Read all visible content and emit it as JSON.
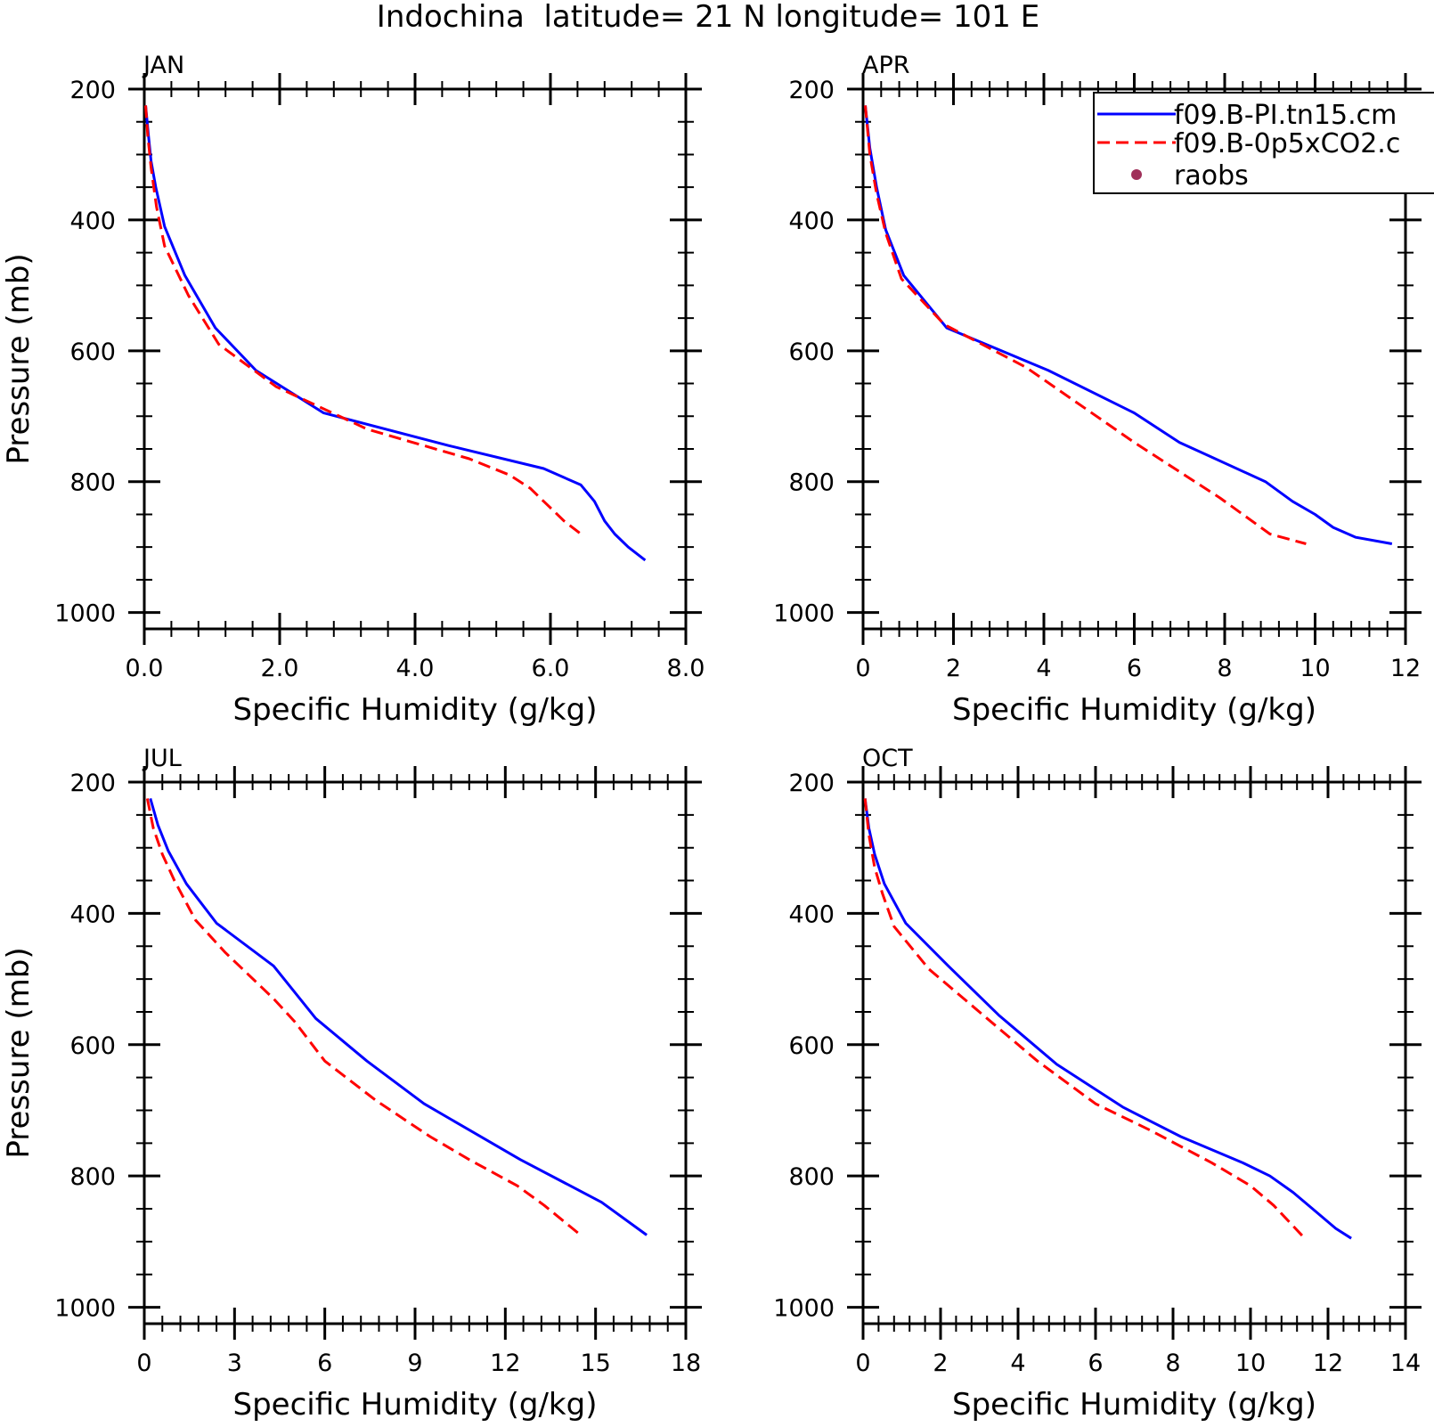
{
  "figure": {
    "title": "Indochina  latitude= 21 N longitude= 101 E"
  },
  "legend": {
    "entries": [
      {
        "label": "f09.B-PI.tn15.cm",
        "style": "solid",
        "color": "#0000ff"
      },
      {
        "label": "f09.B-0p5xCO2.c",
        "style": "dashed",
        "color": "#ff0000"
      },
      {
        "label": "raobs",
        "style": "marker",
        "color": "#a0305a"
      }
    ]
  },
  "chart_data": [
    {
      "type": "line",
      "title": "JAN",
      "xlabel": "Specific Humidity (g/kg)",
      "ylabel": "Pressure (mb)",
      "xlim": [
        0,
        8
      ],
      "ylim": [
        1025,
        200
      ],
      "y_inverted": true,
      "xticks": [
        0,
        2,
        4,
        6,
        8
      ],
      "xtick_labels": [
        "0.0",
        "2.0",
        "4.0",
        "6.0",
        "8.0"
      ],
      "yticks": [
        200,
        400,
        600,
        800,
        1000
      ],
      "ytick_labels": [
        "200",
        "400",
        "600",
        "800",
        "1000"
      ],
      "series": [
        {
          "name": "f09.B-PI.tn15.cm",
          "style": "solid",
          "color": "#0000ff",
          "points": [
            [
              0.02,
              225
            ],
            [
              0.06,
              270
            ],
            [
              0.1,
              310
            ],
            [
              0.17,
              350
            ],
            [
              0.3,
              410
            ],
            [
              0.6,
              485
            ],
            [
              1.05,
              565
            ],
            [
              1.65,
              630
            ],
            [
              2.65,
              695
            ],
            [
              4.5,
              745
            ],
            [
              5.9,
              780
            ],
            [
              6.45,
              805
            ],
            [
              6.65,
              830
            ],
            [
              6.8,
              860
            ],
            [
              6.95,
              880
            ],
            [
              7.15,
              900
            ],
            [
              7.4,
              920
            ]
          ]
        },
        {
          "name": "f09.B-0p5xCO2.c",
          "style": "dashed",
          "color": "#ff0000",
          "points": [
            [
              0.02,
              225
            ],
            [
              0.05,
              270
            ],
            [
              0.1,
              320
            ],
            [
              0.18,
              380
            ],
            [
              0.3,
              440
            ],
            [
              0.65,
              515
            ],
            [
              1.1,
              590
            ],
            [
              1.95,
              655
            ],
            [
              3.3,
              720
            ],
            [
              4.8,
              765
            ],
            [
              5.4,
              790
            ],
            [
              5.7,
              810
            ],
            [
              6.0,
              840
            ],
            [
              6.2,
              860
            ],
            [
              6.45,
              880
            ]
          ]
        }
      ]
    },
    {
      "type": "line",
      "title": "APR",
      "xlabel": "Specific Humidity (g/kg)",
      "ylabel": "",
      "xlim": [
        0,
        12
      ],
      "ylim": [
        1025,
        200
      ],
      "y_inverted": true,
      "xticks": [
        0,
        2,
        4,
        6,
        8,
        10,
        12
      ],
      "xtick_labels": [
        "0",
        "2",
        "4",
        "6",
        "8",
        "10",
        "12"
      ],
      "yticks": [
        200,
        400,
        600,
        800,
        1000
      ],
      "ytick_labels": [
        "200",
        "400",
        "600",
        "800",
        "1000"
      ],
      "series": [
        {
          "name": "f09.B-PI.tn15.cm",
          "style": "solid",
          "color": "#0000ff",
          "points": [
            [
              0.05,
              225
            ],
            [
              0.15,
              290
            ],
            [
              0.3,
              350
            ],
            [
              0.5,
              415
            ],
            [
              0.9,
              485
            ],
            [
              1.85,
              565
            ],
            [
              4.1,
              630
            ],
            [
              6.0,
              695
            ],
            [
              7.0,
              740
            ],
            [
              8.9,
              800
            ],
            [
              9.5,
              830
            ],
            [
              10.0,
              850
            ],
            [
              10.4,
              870
            ],
            [
              10.9,
              885
            ],
            [
              11.7,
              895
            ]
          ]
        },
        {
          "name": "f09.B-0p5xCO2.c",
          "style": "dashed",
          "color": "#ff0000",
          "points": [
            [
              0.05,
              225
            ],
            [
              0.15,
              300
            ],
            [
              0.3,
              360
            ],
            [
              0.5,
              420
            ],
            [
              0.85,
              490
            ],
            [
              1.8,
              560
            ],
            [
              3.6,
              625
            ],
            [
              6.0,
              740
            ],
            [
              7.9,
              825
            ],
            [
              9.0,
              880
            ],
            [
              9.8,
              895
            ]
          ]
        }
      ]
    },
    {
      "type": "line",
      "title": "JUL",
      "xlabel": "Specific Humidity (g/kg)",
      "ylabel": "Pressure (mb)",
      "xlim": [
        0,
        18
      ],
      "ylim": [
        1025,
        200
      ],
      "y_inverted": true,
      "xticks": [
        0,
        3,
        6,
        9,
        12,
        15,
        18
      ],
      "xtick_labels": [
        "0",
        "3",
        "6",
        "9",
        "12",
        "15",
        "18"
      ],
      "yticks": [
        200,
        400,
        600,
        800,
        1000
      ],
      "ytick_labels": [
        "200",
        "400",
        "600",
        "800",
        "1000"
      ],
      "series": [
        {
          "name": "f09.B-PI.tn15.cm",
          "style": "solid",
          "color": "#0000ff",
          "points": [
            [
              0.2,
              225
            ],
            [
              0.45,
              265
            ],
            [
              0.8,
              305
            ],
            [
              1.4,
              355
            ],
            [
              2.4,
              415
            ],
            [
              4.3,
              480
            ],
            [
              5.7,
              560
            ],
            [
              7.4,
              625
            ],
            [
              9.3,
              690
            ],
            [
              12.5,
              775
            ],
            [
              15.2,
              840
            ],
            [
              16.7,
              890
            ]
          ]
        },
        {
          "name": "f09.B-0p5xCO2.c",
          "style": "dashed",
          "color": "#ff0000",
          "points": [
            [
              0.1,
              225
            ],
            [
              0.3,
              270
            ],
            [
              0.6,
              310
            ],
            [
              1.0,
              350
            ],
            [
              1.7,
              410
            ],
            [
              2.7,
              460
            ],
            [
              4.3,
              530
            ],
            [
              5.0,
              565
            ],
            [
              6.0,
              625
            ],
            [
              7.7,
              685
            ],
            [
              9.5,
              740
            ],
            [
              10.8,
              775
            ],
            [
              12.4,
              815
            ],
            [
              13.3,
              845
            ],
            [
              14.5,
              890
            ]
          ]
        }
      ]
    },
    {
      "type": "line",
      "title": "OCT",
      "xlabel": "Specific Humidity (g/kg)",
      "ylabel": "",
      "xlim": [
        0,
        14
      ],
      "ylim": [
        1025,
        200
      ],
      "y_inverted": true,
      "xticks": [
        0,
        2,
        4,
        6,
        8,
        10,
        12,
        14
      ],
      "xtick_labels": [
        "0",
        "2",
        "4",
        "6",
        "8",
        "10",
        "12",
        "14"
      ],
      "yticks": [
        200,
        400,
        600,
        800,
        1000
      ],
      "ytick_labels": [
        "200",
        "400",
        "600",
        "800",
        "1000"
      ],
      "series": [
        {
          "name": "f09.B-PI.tn15.cm",
          "style": "solid",
          "color": "#0000ff",
          "points": [
            [
              0.05,
              225
            ],
            [
              0.15,
              270
            ],
            [
              0.3,
              310
            ],
            [
              0.55,
              355
            ],
            [
              1.1,
              415
            ],
            [
              2.2,
              480
            ],
            [
              3.5,
              555
            ],
            [
              5.0,
              630
            ],
            [
              6.7,
              695
            ],
            [
              8.2,
              740
            ],
            [
              9.8,
              780
            ],
            [
              10.5,
              800
            ],
            [
              11.1,
              825
            ],
            [
              11.6,
              850
            ],
            [
              12.2,
              880
            ],
            [
              12.6,
              895
            ]
          ]
        },
        {
          "name": "f09.B-0p5xCO2.c",
          "style": "dashed",
          "color": "#ff0000",
          "points": [
            [
              0.05,
              225
            ],
            [
              0.15,
              280
            ],
            [
              0.3,
              330
            ],
            [
              0.5,
              370
            ],
            [
              0.8,
              420
            ],
            [
              1.7,
              485
            ],
            [
              3.2,
              560
            ],
            [
              4.5,
              625
            ],
            [
              6.0,
              690
            ],
            [
              7.4,
              730
            ],
            [
              9.0,
              780
            ],
            [
              10.0,
              815
            ],
            [
              10.6,
              845
            ],
            [
              11.4,
              895
            ]
          ]
        }
      ]
    }
  ]
}
